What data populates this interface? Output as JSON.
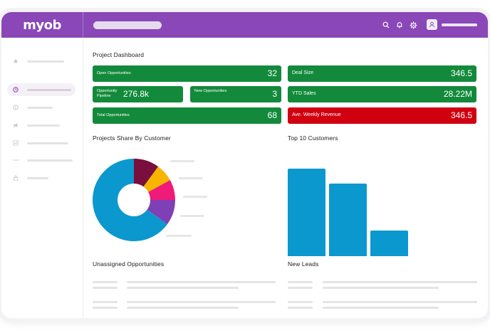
{
  "brand": {
    "logo_text": "myob",
    "primary_color": "#8a47b8"
  },
  "header_icons": [
    "search-icon",
    "bell-icon",
    "gear-icon",
    "user-avatar-icon"
  ],
  "sidebar": {
    "items": [
      {
        "icon": "star-icon",
        "active": false
      },
      {
        "icon": "clock-icon",
        "active": true
      },
      {
        "icon": "dollar-icon",
        "active": false
      },
      {
        "icon": "megaphone-icon",
        "active": false
      },
      {
        "icon": "chart-icon",
        "active": false
      },
      {
        "icon": "more-icon",
        "active": false
      },
      {
        "icon": "lock-icon",
        "active": false
      }
    ]
  },
  "dashboard": {
    "title": "Project Dashboard",
    "tiles": {
      "open_opportunities": {
        "label": "Open Opportunities",
        "value": "32"
      },
      "opportunity_pipeline": {
        "label": "Opportunity Pipeline",
        "value": "276.8k"
      },
      "new_opportunities": {
        "label": "New Opportunities",
        "value": "3"
      },
      "total_opportunities": {
        "label": "Total Opportunities",
        "value": "68"
      },
      "deal_size": {
        "label": "Deal Size",
        "value": "346.5"
      },
      "ytd_sales": {
        "label": "YTD Sales",
        "value": "28.22M"
      },
      "weekly_revenue": {
        "label": "Ave. Weekly Revenue",
        "value": "346.5",
        "status_color": "#d10011"
      }
    },
    "tile_color": "#138a3b",
    "projects_share": {
      "title": "Projects Share By Customer",
      "colors": [
        "#0a98cf",
        "#7a0f3e",
        "#f7b500",
        "#f01a78",
        "#7f3fb5"
      ]
    },
    "top_customers": {
      "title": "Top 10 Customers",
      "bar_color": "#0a98cf"
    },
    "unassigned_title": "Unassigned Opportunities",
    "new_leads_title": "New Leads"
  },
  "chart_data": [
    {
      "type": "pie",
      "title": "Projects Share By Customer",
      "values": [
        65,
        10,
        7,
        8,
        10
      ]
    },
    {
      "type": "bar",
      "title": "Top 10 Customers",
      "values": [
        100,
        83,
        29
      ]
    }
  ]
}
